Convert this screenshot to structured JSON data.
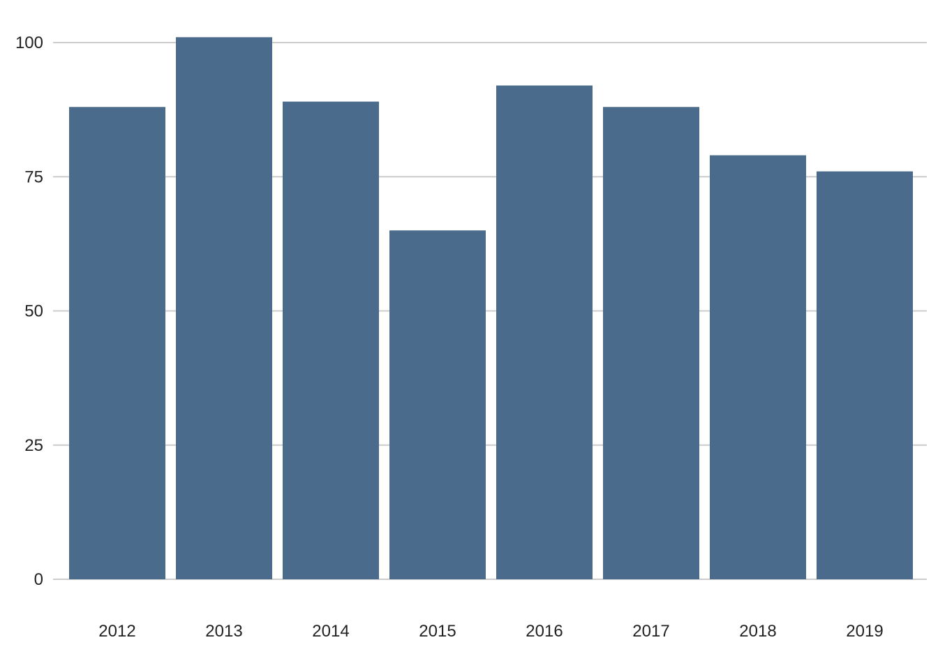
{
  "chart_data": {
    "type": "bar",
    "title": "",
    "xlabel": "",
    "ylabel": "",
    "categories": [
      "2012",
      "2013",
      "2014",
      "2015",
      "2016",
      "2017",
      "2018",
      "2019"
    ],
    "values": [
      88,
      101,
      89,
      65,
      92,
      88,
      79,
      76
    ],
    "ylim": [
      0,
      105
    ],
    "yticks": [
      0,
      25,
      50,
      75,
      100
    ],
    "ytick_labels": [
      "0",
      "25",
      "50",
      "75",
      "100"
    ],
    "grid": "horizontal",
    "legend": "none",
    "bar_color": "#4a6b8c",
    "grid_color": "#cccccc"
  }
}
